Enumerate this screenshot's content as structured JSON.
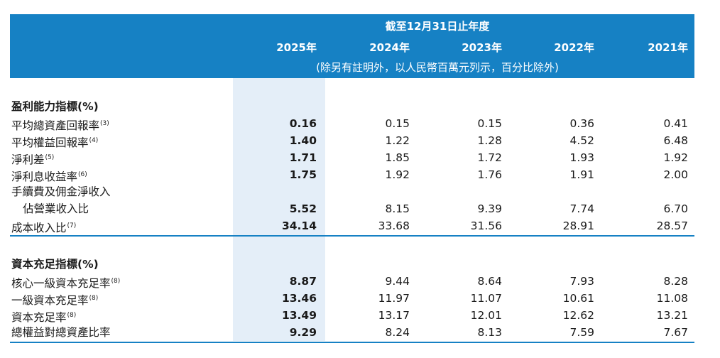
{
  "header": {
    "period_title": "截至12月31日止年度",
    "unit_note": "(除另有註明外，以人民幣百萬元列示，百分比除外)",
    "years": [
      "2025年",
      "2024年",
      "2023年",
      "2022年",
      "2021年"
    ]
  },
  "profitability": {
    "title": "盈利能力指標(%)",
    "rows": [
      {
        "label": "平均總資產回報率",
        "note": "(3)",
        "values": [
          "0.16",
          "0.15",
          "0.15",
          "0.36",
          "0.41"
        ]
      },
      {
        "label": "平均權益回報率",
        "note": "(4)",
        "values": [
          "1.40",
          "1.22",
          "1.28",
          "4.52",
          "6.48"
        ]
      },
      {
        "label": "淨利差",
        "note": "(5)",
        "values": [
          "1.71",
          "1.85",
          "1.72",
          "1.93",
          "1.92"
        ]
      },
      {
        "label": "淨利息收益率",
        "note": "(6)",
        "values": [
          "1.75",
          "1.92",
          "1.76",
          "1.91",
          "2.00"
        ]
      },
      {
        "label_line1": "手續費及佣金淨收入",
        "label_line2": "佔營業收入比",
        "values": [
          "5.52",
          "8.15",
          "9.39",
          "7.74",
          "6.70"
        ]
      },
      {
        "label": "成本收入比",
        "note": "(7)",
        "values": [
          "34.14",
          "33.68",
          "31.56",
          "28.91",
          "28.57"
        ]
      }
    ]
  },
  "capital": {
    "title": "資本充足指標(%)",
    "rows": [
      {
        "label": "核心一級資本充足率",
        "note": "(8)",
        "values": [
          "8.87",
          "9.44",
          "8.64",
          "7.93",
          "8.28"
        ]
      },
      {
        "label": "一級資本充足率",
        "note": "(8)",
        "values": [
          "13.46",
          "11.97",
          "11.07",
          "10.61",
          "11.08"
        ]
      },
      {
        "label": "資本充足率",
        "note": "(8)",
        "values": [
          "13.49",
          "13.17",
          "12.01",
          "12.62",
          "13.21"
        ]
      },
      {
        "label": "總權益對總資產比率",
        "values": [
          "9.29",
          "8.24",
          "8.13",
          "7.59",
          "7.67"
        ]
      }
    ]
  },
  "colors": {
    "header_blue": "#1681c4",
    "highlight_column": "#e4eef8"
  }
}
